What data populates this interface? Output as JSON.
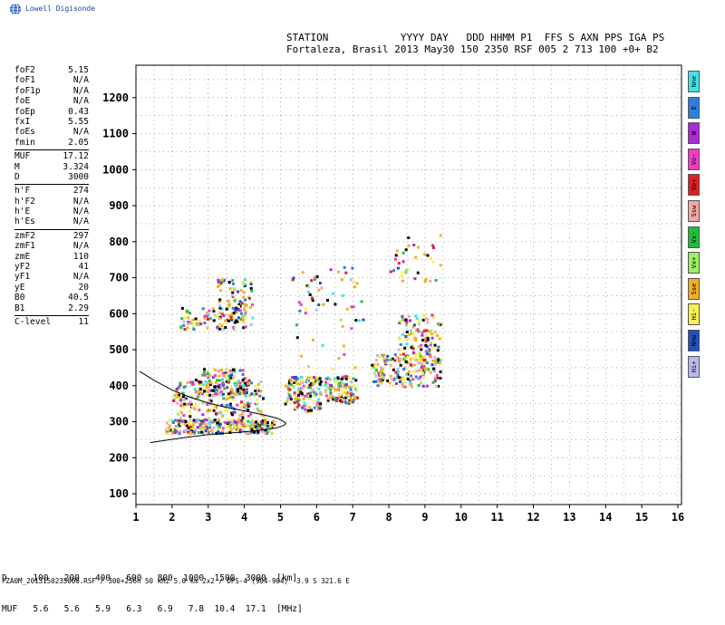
{
  "logo_text": "Lowell Digisonde",
  "header": {
    "line1": "STATION            YYYY DAY   DDD HHMM P1  FFS S AXN PPS IGA PS",
    "line2": "Fortaleza, Brasil 2013 May30 150 2350 RSF 005 2 713 100 +0+ B2"
  },
  "params": [
    {
      "label": "foF2",
      "value": "5.15"
    },
    {
      "label": "foF1",
      "value": "N/A"
    },
    {
      "label": "foF1p",
      "value": "N/A"
    },
    {
      "label": "foE",
      "value": "N/A"
    },
    {
      "label": "foEp",
      "value": "0.43"
    },
    {
      "label": "fxI",
      "value": "5.55"
    },
    {
      "label": "foEs",
      "value": "N/A"
    },
    {
      "label": "fmin",
      "value": "2.05"
    },
    {
      "sep": true
    },
    {
      "label": "MUF",
      "value": "17.12"
    },
    {
      "label": "M",
      "value": "3.324"
    },
    {
      "label": "D",
      "value": "3000"
    },
    {
      "sep": true
    },
    {
      "label": "h'F",
      "value": "274"
    },
    {
      "label": "h'F2",
      "value": "N/A"
    },
    {
      "label": "h'E",
      "value": "N/A"
    },
    {
      "label": "h'Es",
      "value": "N/A"
    },
    {
      "sep": true
    },
    {
      "label": "zmF2",
      "value": "297"
    },
    {
      "label": "zmF1",
      "value": "N/A"
    },
    {
      "label": "zmE",
      "value": "110"
    },
    {
      "label": "yF2",
      "value": "41"
    },
    {
      "label": "yF1",
      "value": "N/A"
    },
    {
      "label": "yE",
      "value": "20"
    },
    {
      "label": "B0",
      "value": "40.5"
    },
    {
      "label": "B1",
      "value": "2.29"
    },
    {
      "sep": true
    },
    {
      "label": "C-level",
      "value": "11"
    }
  ],
  "distance_table": {
    "row1": "D     100   200   400   600   800  1000  1500  3000  [km]",
    "row2": "MUF   5.6   5.6   5.9   6.3   6.9   7.8  10.4  17.1  [MHz]"
  },
  "footer": "FZA0M_2013150235000.RSF / 300+256h 50 kHz 5.0 km 2x2 / DPS-4 (904-904)  3.9 S 321.6 E",
  "legend": [
    {
      "label": "Nne",
      "color": "#3fe3e8"
    },
    {
      "label": "E",
      "color": "#2c7fe0"
    },
    {
      "label": "W",
      "color": "#a82bd6"
    },
    {
      "label": "Vo-",
      "color": "#f03cc8"
    },
    {
      "label": "Vo+",
      "color": "#e02020"
    },
    {
      "label": "Ssw",
      "color": "#f4a8a0"
    },
    {
      "label": "Vx-",
      "color": "#1fbf3a"
    },
    {
      "label": "Vx+",
      "color": "#9af060"
    },
    {
      "label": "Sse",
      "color": "#f4b020"
    },
    {
      "label": "Hi-",
      "color": "#f8f050"
    },
    {
      "label": "Nnw",
      "color": "#2050c0"
    },
    {
      "label": "Hi+",
      "color": "#b8b8f0"
    }
  ],
  "chart_data": {
    "type": "scatter",
    "title": "",
    "xlabel": "",
    "ylabel": "",
    "xlim": [
      1,
      16.1
    ],
    "ylim": [
      70,
      1290
    ],
    "x_ticks": [
      1,
      2,
      3,
      4,
      5,
      6,
      7,
      8,
      9,
      10,
      11,
      12,
      13,
      14,
      15,
      16
    ],
    "y_ticks": [
      100,
      200,
      300,
      400,
      500,
      600,
      700,
      800,
      900,
      1000,
      1100,
      1200
    ],
    "grid": true,
    "trace_curve": [
      [
        1.1,
        440
      ],
      [
        1.5,
        415
      ],
      [
        2.0,
        388
      ],
      [
        2.5,
        368
      ],
      [
        3.0,
        352
      ],
      [
        3.5,
        340
      ],
      [
        4.0,
        330
      ],
      [
        4.5,
        320
      ],
      [
        4.9,
        310
      ],
      [
        5.1,
        300
      ],
      [
        5.15,
        295
      ],
      [
        5.1,
        290
      ],
      [
        4.9,
        283
      ],
      [
        4.6,
        278
      ],
      [
        4.0,
        272
      ],
      [
        3.5,
        268
      ],
      [
        3.0,
        264
      ],
      [
        2.5,
        258
      ],
      [
        2.0,
        251
      ],
      [
        1.4,
        242
      ]
    ],
    "clusters": [
      {
        "x": [
          1.8,
          4.8
        ],
        "y": [
          270,
          310
        ],
        "n": 260
      },
      {
        "x": [
          2.0,
          4.5
        ],
        "y": [
          300,
          420
        ],
        "n": 230
      },
      {
        "x": [
          2.8,
          4.0
        ],
        "y": [
          380,
          450
        ],
        "n": 120
      },
      {
        "x": [
          2.2,
          4.2
        ],
        "y": [
          560,
          620
        ],
        "n": 110
      },
      {
        "x": [
          3.2,
          4.2
        ],
        "y": [
          620,
          700
        ],
        "n": 60
      },
      {
        "x": [
          5.1,
          6.1
        ],
        "y": [
          330,
          430
        ],
        "n": 150
      },
      {
        "x": [
          6.2,
          7.1
        ],
        "y": [
          355,
          430
        ],
        "n": 110
      },
      {
        "x": [
          7.5,
          9.0
        ],
        "y": [
          400,
          490
        ],
        "n": 130
      },
      {
        "x": [
          8.2,
          9.4
        ],
        "y": [
          460,
          600
        ],
        "n": 130
      },
      {
        "x": [
          8.9,
          9.4
        ],
        "y": [
          400,
          480
        ],
        "n": 25
      },
      {
        "x": [
          5.3,
          7.1
        ],
        "y": [
          620,
          740
        ],
        "n": 35
      },
      {
        "x": [
          8.0,
          9.4
        ],
        "y": [
          690,
          830
        ],
        "n": 35
      },
      {
        "x": [
          5.4,
          7.3
        ],
        "y": [
          440,
          640
        ],
        "n": 25
      }
    ]
  }
}
